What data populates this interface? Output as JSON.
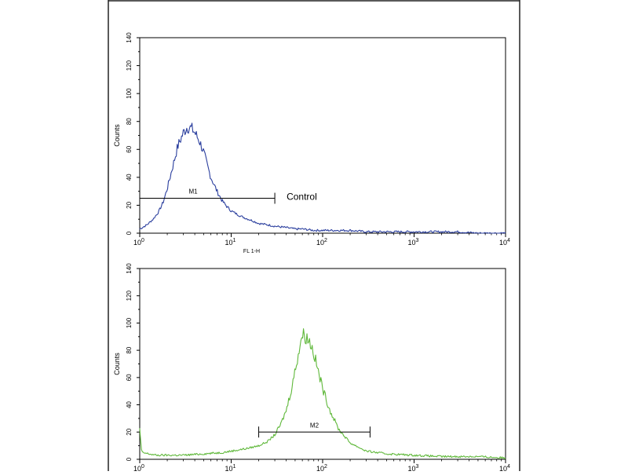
{
  "chart_data": [
    {
      "type": "line",
      "xscale": "log",
      "xlim": [
        1,
        10000
      ],
      "ylim": [
        0,
        140
      ],
      "yticks": [
        0,
        20,
        40,
        60,
        80,
        100,
        120,
        140
      ],
      "xticks": [
        {
          "base": "10",
          "exp": "0"
        },
        {
          "base": "10",
          "exp": "1"
        },
        {
          "base": "10",
          "exp": "2"
        },
        {
          "base": "10",
          "exp": "3"
        },
        {
          "base": "10",
          "exp": "4"
        }
      ],
      "xlabel": "FL 1-H",
      "ylabel": "Counts",
      "color": "#2b3f9e",
      "series": [
        {
          "x": [
            1.0,
            1.2,
            1.4,
            1.6,
            1.8,
            2.0,
            2.3,
            2.6,
            3.0,
            3.3,
            3.7,
            4.0,
            4.5,
            5.0,
            5.5,
            6.0,
            7.0,
            8.0,
            9.0,
            10,
            12,
            14,
            17,
            20,
            25,
            30,
            40,
            50,
            60,
            80,
            100,
            150,
            200,
            300,
            500,
            700,
            1000,
            1500,
            2000,
            3000,
            5000,
            7000,
            10000
          ],
          "y": [
            3,
            6,
            10,
            15,
            22,
            32,
            48,
            62,
            72,
            76,
            75,
            72,
            66,
            58,
            48,
            40,
            30,
            23,
            19,
            16,
            13,
            11,
            9,
            7,
            6,
            5,
            4,
            3,
            3,
            2,
            2,
            2,
            2,
            1,
            1,
            1,
            1,
            1,
            1,
            1,
            0,
            0,
            0
          ]
        }
      ],
      "marker": {
        "label": "M1",
        "x1": 1,
        "x2": 30,
        "y": 25
      },
      "annotation": "Control"
    },
    {
      "type": "line",
      "xscale": "log",
      "xlim": [
        1,
        10000
      ],
      "ylim": [
        0,
        140
      ],
      "yticks": [
        0,
        20,
        40,
        60,
        80,
        100,
        120,
        140
      ],
      "xticks": [
        {
          "base": "10",
          "exp": "0"
        },
        {
          "base": "10",
          "exp": "1"
        },
        {
          "base": "10",
          "exp": "2"
        },
        {
          "base": "10",
          "exp": "3"
        },
        {
          "base": "10",
          "exp": "4"
        }
      ],
      "ylabel": "Counts",
      "color": "#5fb83a",
      "series": [
        {
          "x": [
            1.0,
            1.05,
            1.5,
            2,
            3,
            5,
            8,
            10,
            15,
            20,
            25,
            30,
            35,
            40,
            45,
            50,
            55,
            60,
            65,
            70,
            75,
            80,
            90,
            100,
            120,
            150,
            200,
            300,
            500,
            1000,
            2000,
            5000,
            10000
          ],
          "y": [
            22,
            5,
            3,
            3,
            3,
            4,
            5,
            6,
            8,
            10,
            13,
            18,
            26,
            36,
            50,
            65,
            80,
            92,
            90,
            88,
            84,
            78,
            64,
            52,
            36,
            22,
            12,
            6,
            4,
            3,
            2,
            2,
            1
          ]
        }
      ],
      "marker": {
        "label": "M2",
        "x1": 20,
        "x2": 330,
        "y": 20
      }
    }
  ]
}
